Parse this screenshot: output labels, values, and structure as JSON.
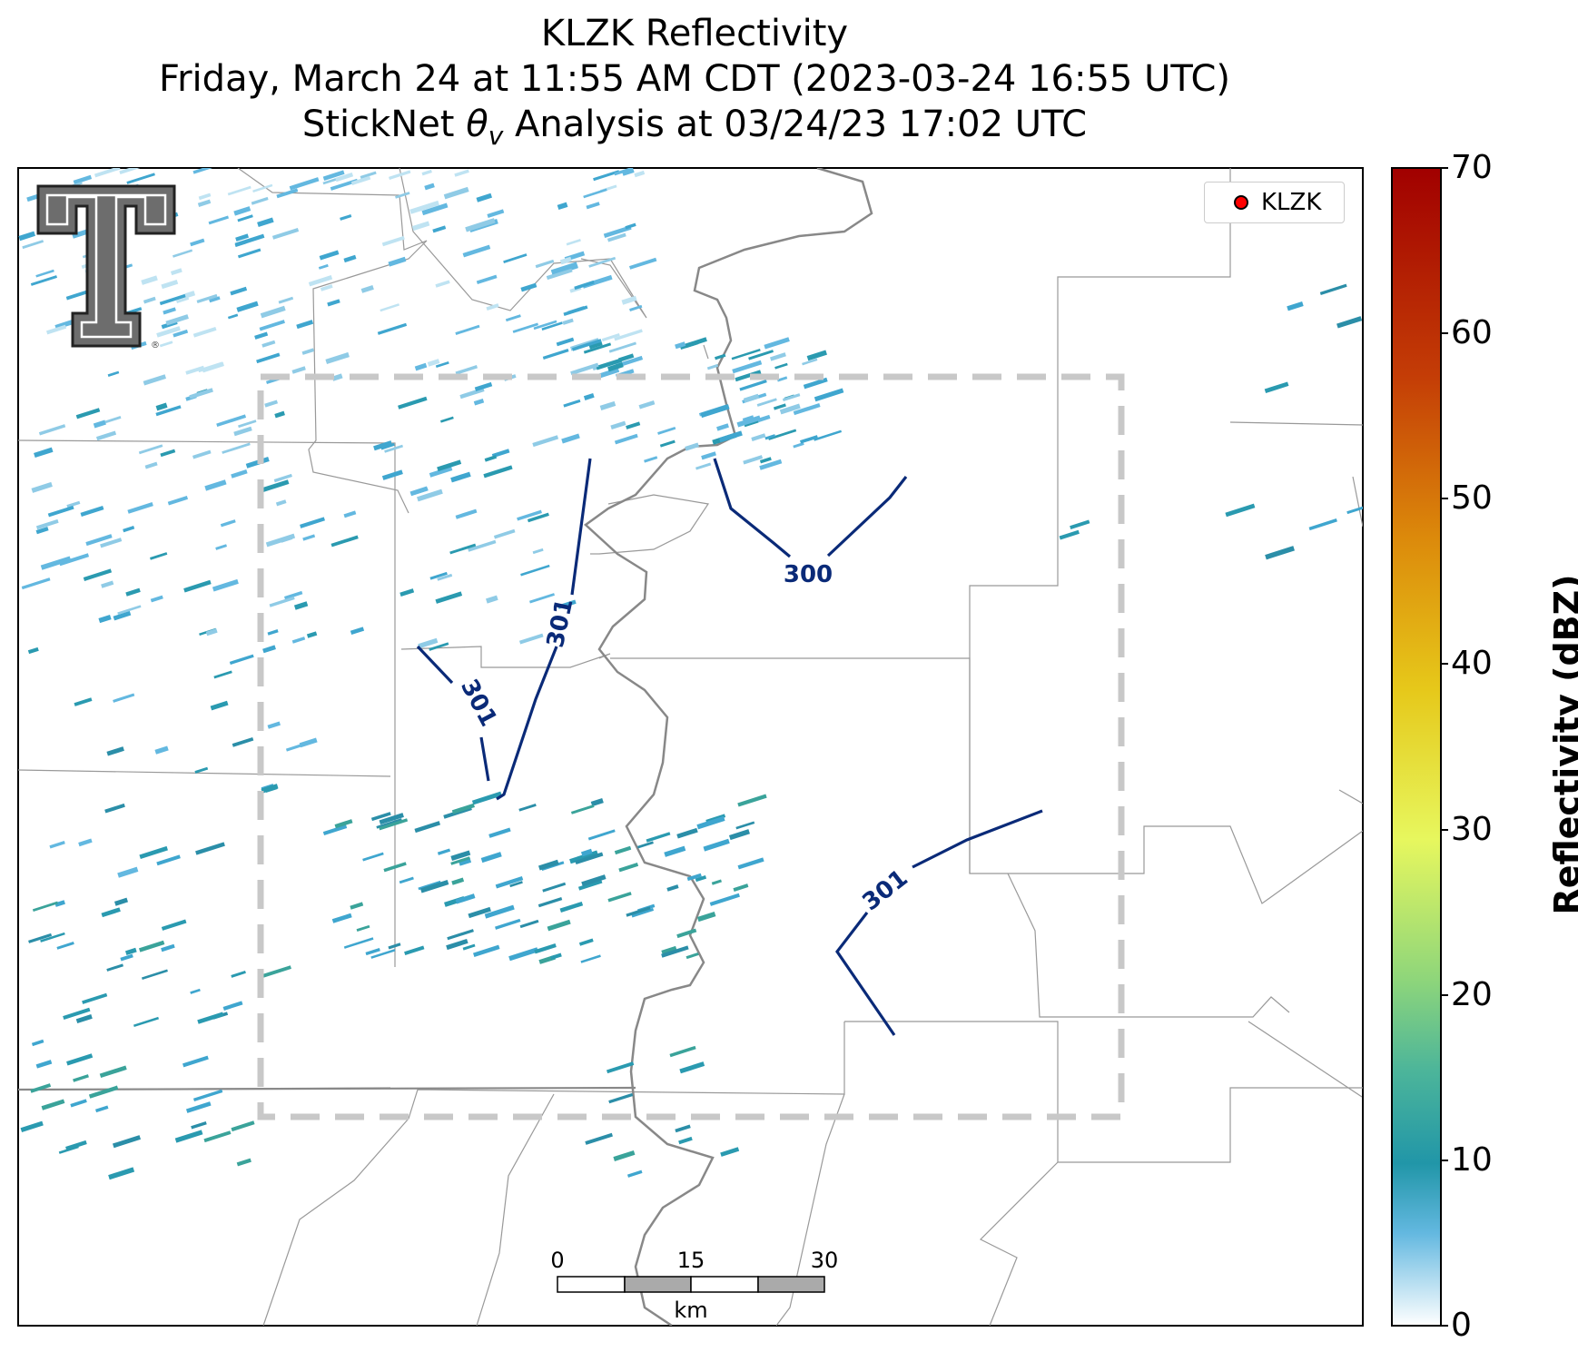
{
  "title": {
    "line1": "KLZK Reflectivity",
    "line2": "Friday, March 24 at 11:55 AM CDT (2023-03-24 16:55 UTC)",
    "line3_prefix": "StickNet ",
    "line3_symbol": "θ",
    "line3_subscript": "v",
    "line3_suffix": " Analysis at 03/24/23 17:02 UTC"
  },
  "legend": {
    "label": "KLZK",
    "marker_color": "#ff0000"
  },
  "colorbar": {
    "label": "Reflectivity (dBZ)",
    "ticks": [
      "0",
      "10",
      "20",
      "30",
      "40",
      "50",
      "60",
      "70"
    ],
    "min": 0,
    "max": 70
  },
  "scale_bar": {
    "labels": [
      "0",
      "15",
      "30"
    ],
    "unit": "km"
  },
  "contours": {
    "color": "#0a2a78",
    "labels": [
      "300",
      "301",
      "301",
      "301"
    ]
  },
  "colors": {
    "analysis_box": "#c8c8c8",
    "river": "#808080",
    "county_lines": "#999999",
    "reflectivity_low": "#4fb3d8",
    "reflectivity_mid": "#2a9ab0"
  },
  "logo": {
    "name": "Texas Tech Double T logo"
  }
}
